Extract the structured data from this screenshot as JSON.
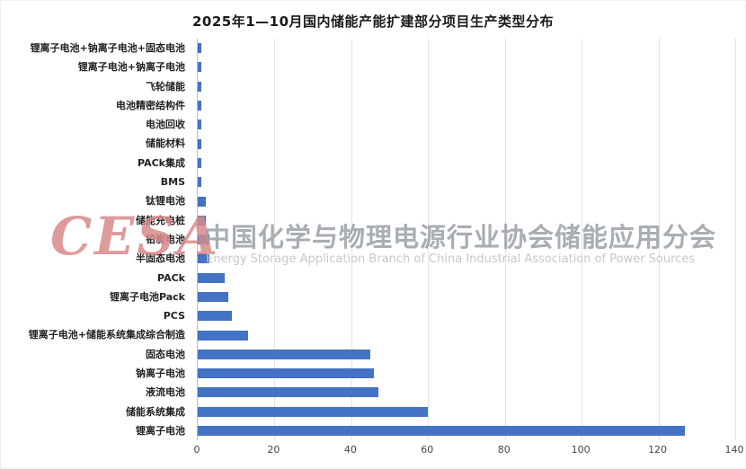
{
  "title": "2025年1—10月国内储能产能扩建部分项目生产类型分布",
  "watermark": {
    "logo": "CESA",
    "cn": "中国化学与物理电源行业协会储能应用分会",
    "en": "Energy Storage Application Branch of China Industrial Association of Power Sources"
  },
  "chart_data": {
    "type": "bar",
    "orientation": "horizontal",
    "title": "2025年1—10月国内储能产能扩建部分项目生产类型分布",
    "categories": [
      "锂离子电池+钠离子电池+固态电池",
      "锂离子电池+钠离子电池",
      "飞轮储能",
      "电池精密结构件",
      "电池回收",
      "储能材料",
      "PACk集成",
      "BMS",
      "钛锂电池",
      "储能充电桩",
      "铅炭电池",
      "半固态电池",
      "PACk",
      "锂离子电池Pack",
      "PCS",
      "锂离子电池+储能系统集成综合制造",
      "固态电池",
      "钠离子电池",
      "液流电池",
      "储能系统集成",
      "锂离子电池"
    ],
    "values": [
      1,
      1,
      1,
      1,
      1,
      1,
      1,
      1,
      2,
      2,
      3,
      3,
      7,
      8,
      9,
      13,
      45,
      46,
      47,
      60,
      127
    ],
    "xlabel": "",
    "ylabel": "",
    "xlim": [
      0,
      140
    ],
    "x_ticks": [
      0,
      20,
      40,
      60,
      80,
      100,
      120,
      140
    ],
    "bar_color": "#4472C4",
    "grid": true,
    "legend": "none"
  }
}
